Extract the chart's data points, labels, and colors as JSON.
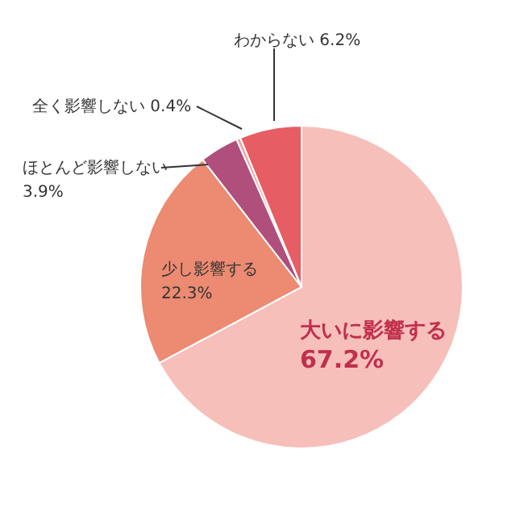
{
  "chart_data": {
    "type": "pie",
    "categories": [
      "大いに影響する",
      "少し影響する",
      "ほとんど影響しない",
      "全く影響しない",
      "わからない"
    ],
    "values": [
      67.2,
      22.3,
      3.9,
      0.4,
      6.2
    ],
    "value_labels": [
      "67.2%",
      "22.3%",
      "3.9%",
      "0.4%",
      "6.2%"
    ],
    "colors": [
      "#f7bfba",
      "#ec8a72",
      "#b04f7c",
      "#f2a0a0",
      "#e65d63"
    ]
  }
}
